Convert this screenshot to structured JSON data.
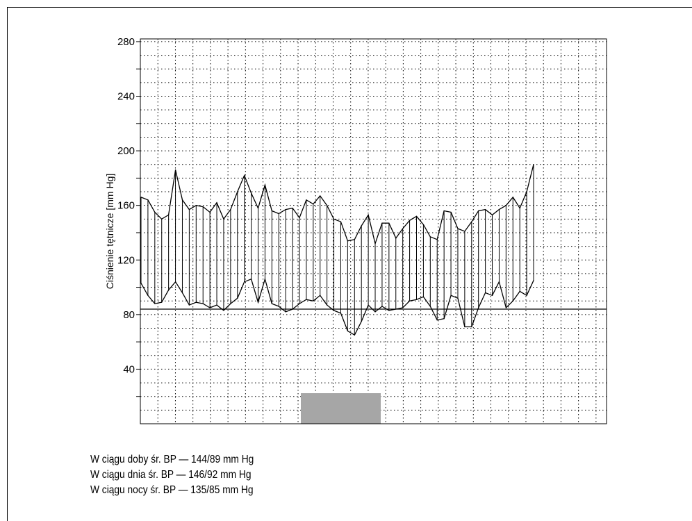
{
  "chart_data": {
    "type": "line",
    "title": "",
    "ylabel": "Ciśnienie tętnicze [mm Hg]",
    "xlabel": "",
    "ylim": [
      0,
      282
    ],
    "yticks": [
      40,
      80,
      120,
      160,
      200,
      240,
      280
    ],
    "grid": true,
    "reference_line": 84,
    "shaded_interval": {
      "start_index": 23,
      "end_index": 34,
      "color": "#a6a6a6"
    },
    "series": [
      {
        "values": [
          166,
          164,
          155,
          150,
          153,
          186,
          164,
          157,
          160,
          159,
          155,
          162,
          150,
          157,
          170,
          182,
          169,
          158,
          175,
          156,
          154,
          157,
          158,
          151,
          164,
          161,
          167,
          160,
          150,
          148,
          134,
          135,
          145,
          153,
          132,
          147,
          147,
          136,
          143,
          149,
          152,
          146,
          137,
          135,
          156,
          155,
          143,
          141,
          148,
          156,
          157,
          153,
          157,
          160,
          166,
          158,
          170,
          190
        ]
      },
      {
        "values": [
          103,
          94,
          88,
          89,
          98,
          104,
          96,
          87,
          89,
          88,
          85,
          87,
          83,
          88,
          92,
          104,
          106,
          89,
          106,
          88,
          86,
          82,
          84,
          88,
          91,
          90,
          94,
          87,
          83,
          81,
          68,
          65,
          75,
          87,
          82,
          86,
          83,
          84,
          85,
          90,
          91,
          93,
          86,
          76,
          77,
          94,
          92,
          71,
          71,
          85,
          96,
          94,
          104,
          85,
          90,
          97,
          94,
          105
        ]
      }
    ]
  },
  "stats": {
    "line1": "W ciągu doby śr. BP — 144/89 mm Hg",
    "line2": "W ciągu dnia śr. BP — 146/92 mm Hg",
    "line3": "W ciągu nocy śr. BP — 135/85 mm Hg"
  }
}
